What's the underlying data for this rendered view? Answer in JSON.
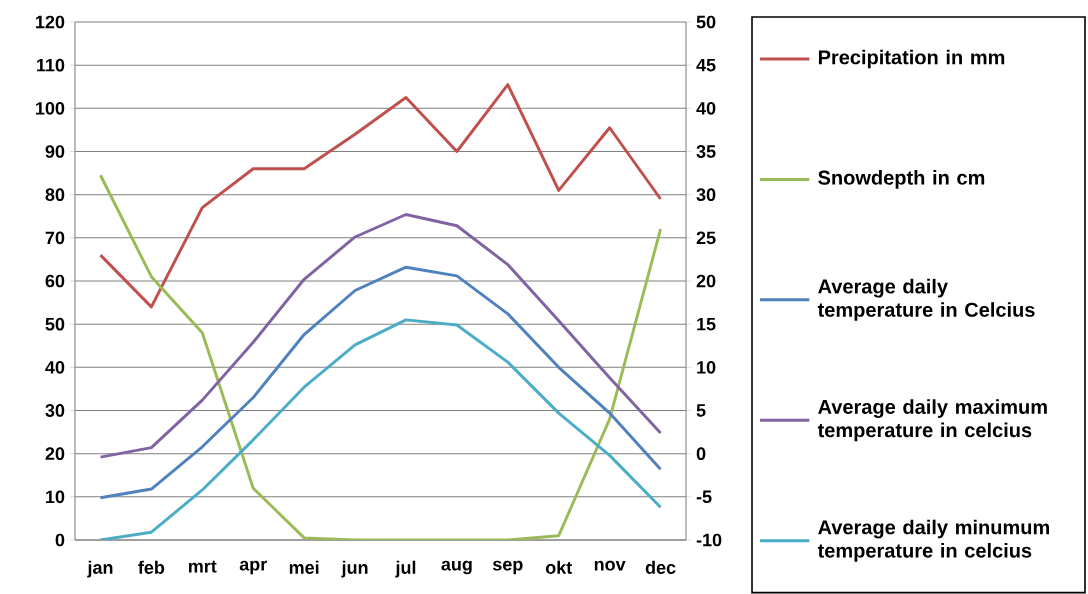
{
  "chart_data": {
    "type": "line",
    "categories": [
      "jan",
      "feb",
      "mrt",
      "apr",
      "mei",
      "jun",
      "jul",
      "aug",
      "sep",
      "okt",
      "nov",
      "dec"
    ],
    "series": [
      {
        "name": "Precipitation in mm",
        "color": "#c0504d",
        "axis": "y",
        "values": [
          66,
          54,
          77,
          86,
          86,
          94,
          102.5,
          90,
          105.5,
          81,
          95.5,
          79
        ]
      },
      {
        "name": "Snowdepth in cm",
        "color": "#9bbb59",
        "axis": "y",
        "values": [
          84.5,
          61,
          48,
          12,
          0.5,
          0,
          0,
          0,
          0,
          1,
          28,
          72
        ]
      },
      {
        "name": "Average daily temperature in Celcius",
        "color": "#4f81bd",
        "axis": "y2",
        "values": [
          -5.1,
          -4.1,
          0.8,
          6.5,
          13.8,
          18.9,
          21.6,
          20.6,
          16.2,
          10.0,
          4.7,
          -1.8
        ]
      },
      {
        "name": "Average daily maximum temperature in celcius",
        "color": "#8064a2",
        "axis": "y2",
        "values": [
          -0.4,
          0.7,
          6.2,
          12.9,
          20.2,
          25.1,
          27.7,
          26.4,
          21.9,
          15.4,
          8.8,
          2.4
        ]
      },
      {
        "name": "Average daily minumum temperature in celcius",
        "color": "#4bacc6",
        "axis": "y2",
        "values": [
          -10,
          -9.1,
          -4.2,
          1.6,
          7.7,
          12.6,
          15.5,
          14.9,
          10.6,
          4.7,
          -0.2,
          -6.2
        ]
      }
    ],
    "ylim": [
      0,
      120
    ],
    "yticks": [
      0,
      10,
      20,
      30,
      40,
      50,
      60,
      70,
      80,
      90,
      100,
      110,
      120
    ],
    "y2lim": [
      -10,
      50
    ],
    "y2ticks": [
      -10,
      -5,
      0,
      5,
      10,
      15,
      20,
      25,
      30,
      35,
      40,
      45,
      50
    ],
    "grid": "y",
    "legend": "right"
  }
}
